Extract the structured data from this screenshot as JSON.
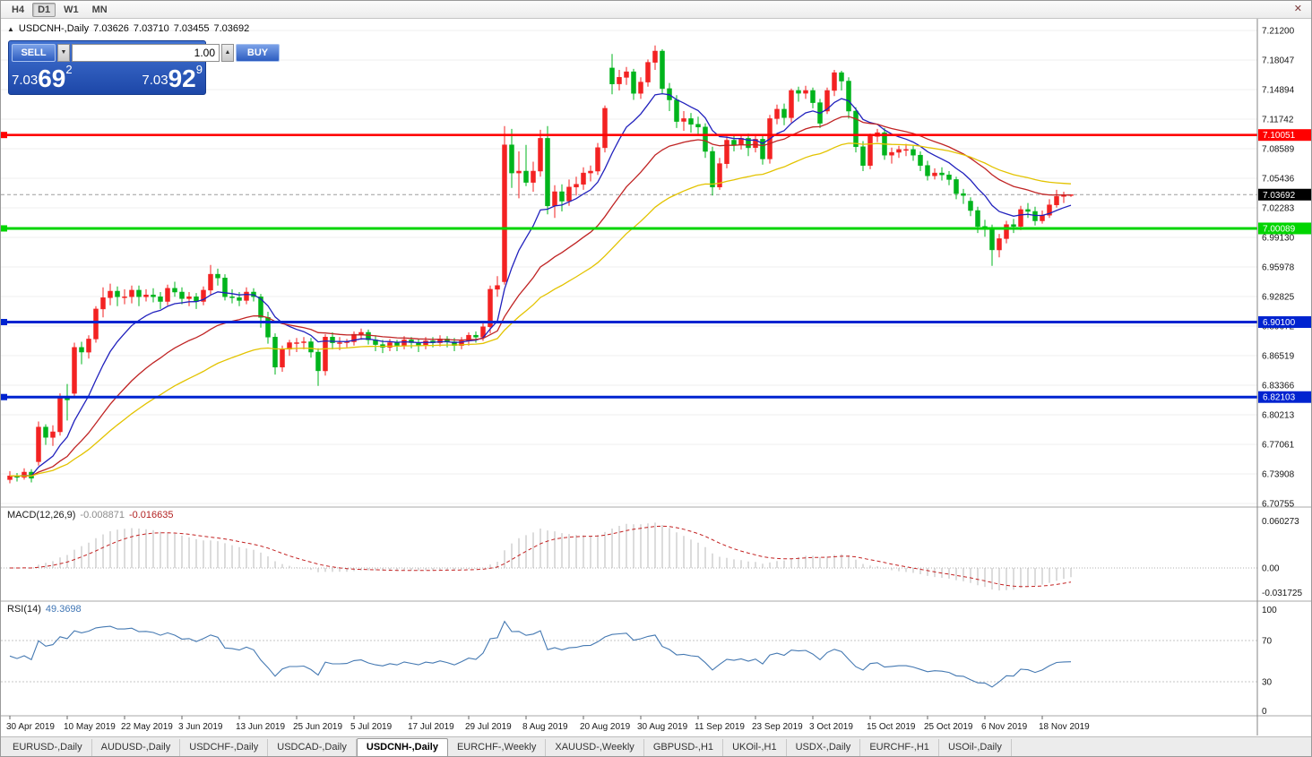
{
  "window": {
    "close_label": "✕"
  },
  "toolbar": {
    "timeframes": [
      "H4",
      "D1",
      "W1",
      "MN"
    ],
    "active_timeframe": "D1"
  },
  "info_line": {
    "collapse_icon": "▲",
    "symbol": "USDCNH-,Daily",
    "open": "7.03626",
    "high": "7.03710",
    "low": "7.03455",
    "close": "7.03692"
  },
  "trade_panel": {
    "sell_label": "SELL",
    "buy_label": "BUY",
    "volume": "1.00",
    "volume_down_icon": "▼",
    "volume_up_icon": "▲",
    "sell_price": {
      "prefix": "7.03",
      "big": "69",
      "sup": "2"
    },
    "buy_price": {
      "prefix": "7.03",
      "big": "92",
      "sup": "9"
    }
  },
  "indicator_labels": {
    "macd_name": "MACD(12,26,9)",
    "macd_value_main": "-0.008871",
    "macd_value_signal": "-0.016635",
    "rsi_name": "RSI(14)",
    "rsi_value": "49.3698"
  },
  "tabs": [
    {
      "label": "EURUSD-,Daily",
      "active": false
    },
    {
      "label": "AUDUSD-,Daily",
      "active": false
    },
    {
      "label": "USDCHF-,Daily",
      "active": false
    },
    {
      "label": "USDCAD-,Daily",
      "active": false
    },
    {
      "label": "USDCNH-,Daily",
      "active": true
    },
    {
      "label": "EURCHF-,Weekly",
      "active": false
    },
    {
      "label": "XAUUSD-,Weekly",
      "active": false
    },
    {
      "label": "GBPUSD-,H1",
      "active": false
    },
    {
      "label": "UKOil-,H1",
      "active": false
    },
    {
      "label": "USDX-,Daily",
      "active": false
    },
    {
      "label": "EURCHF-,H1",
      "active": false
    },
    {
      "label": "USOil-,Daily",
      "active": false
    }
  ],
  "chart_data": {
    "type": "candlestick",
    "symbol": "USDCNH-",
    "timeframe": "Daily",
    "ohlc_current": {
      "open": 7.03626,
      "high": 7.0371,
      "low": 7.03455,
      "close": 7.03692
    },
    "bid": 7.03692,
    "ylim": [
      6.70755,
      7.212
    ],
    "y_tick_labels": [
      "7.21200",
      "7.18047",
      "7.14894",
      "7.11742",
      "7.08589",
      "7.05436",
      "7.02283",
      "6.99130",
      "6.95978",
      "6.92825",
      "6.89672",
      "6.86519",
      "6.83366",
      "6.80213",
      "6.77061",
      "6.73908",
      "6.70755"
    ],
    "x_ticks": [
      {
        "index": 0,
        "label": "30 Apr 2019"
      },
      {
        "index": 8,
        "label": "10 May 2019"
      },
      {
        "index": 16,
        "label": "22 May 2019"
      },
      {
        "index": 24,
        "label": "3 Jun 2019"
      },
      {
        "index": 32,
        "label": "13 Jun 2019"
      },
      {
        "index": 40,
        "label": "25 Jun 2019"
      },
      {
        "index": 48,
        "label": "5 Jul 2019"
      },
      {
        "index": 56,
        "label": "17 Jul 2019"
      },
      {
        "index": 64,
        "label": "29 Jul 2019"
      },
      {
        "index": 72,
        "label": "8 Aug 2019"
      },
      {
        "index": 80,
        "label": "20 Aug 2019"
      },
      {
        "index": 88,
        "label": "30 Aug 2019"
      },
      {
        "index": 96,
        "label": "11 Sep 2019"
      },
      {
        "index": 104,
        "label": "23 Sep 2019"
      },
      {
        "index": 112,
        "label": "3 Oct 2019"
      },
      {
        "index": 120,
        "label": "15 Oct 2019"
      },
      {
        "index": 128,
        "label": "25 Oct 2019"
      },
      {
        "index": 136,
        "label": "6 Nov 2019"
      },
      {
        "index": 144,
        "label": "18 Nov 2019"
      }
    ],
    "colors": {
      "up": "#f32222",
      "down": "#00b41c"
    },
    "ma": [
      {
        "type": "ema",
        "period": 10,
        "color": "#2121bd"
      },
      {
        "type": "ema",
        "period": 25,
        "color": "#c02424"
      },
      {
        "type": "ema",
        "period": 45,
        "color": "#e3c300"
      }
    ],
    "hlines": [
      {
        "price": 7.10051,
        "label": "7.10051",
        "color": "#ff0000",
        "width": 2.6
      },
      {
        "price": 7.00089,
        "label": "7.00089",
        "color": "#00d500",
        "width": 3
      },
      {
        "price": 6.901,
        "label": "6.90100",
        "color": "#0023d0",
        "width": 3
      },
      {
        "price": 6.82103,
        "label": "6.82103",
        "color": "#0023d0",
        "width": 3
      }
    ],
    "current_price_tag": {
      "label": "7.03692",
      "color": "#000000"
    },
    "indicators": {
      "macd": {
        "fast": 12,
        "slow": 26,
        "signal": 9,
        "values_shown": [
          -0.008871,
          -0.016635
        ],
        "axis_labels": [
          "0.060273",
          "0.00",
          "-0.031725"
        ]
      },
      "rsi": {
        "period": 14,
        "value_shown": 49.3698,
        "axis_labels": [
          "100",
          "70",
          "30",
          "0"
        ],
        "levels": [
          70,
          30
        ]
      }
    },
    "candles": [
      [
        6.733,
        6.742,
        6.729,
        6.737
      ],
      [
        6.737,
        6.74,
        6.731,
        6.7355
      ],
      [
        6.7355,
        6.745,
        6.733,
        6.741
      ],
      [
        6.741,
        6.744,
        6.73,
        6.7345
      ],
      [
        6.752,
        6.795,
        6.748,
        6.789
      ],
      [
        6.789,
        6.792,
        6.77,
        6.778
      ],
      [
        6.778,
        6.791,
        6.769,
        6.784
      ],
      [
        6.784,
        6.825,
        6.78,
        6.822
      ],
      [
        6.822,
        6.835,
        6.796,
        6.818
      ],
      [
        6.825,
        6.879,
        6.82,
        6.874
      ],
      [
        6.874,
        6.88,
        6.856,
        6.869
      ],
      [
        6.869,
        6.887,
        6.862,
        6.883
      ],
      [
        6.883,
        6.918,
        6.879,
        6.915
      ],
      [
        6.915,
        6.938,
        6.906,
        6.927
      ],
      [
        6.927,
        6.942,
        6.919,
        6.934
      ],
      [
        6.934,
        6.939,
        6.918,
        6.928
      ],
      [
        6.928,
        6.936,
        6.92,
        6.928
      ],
      [
        6.928,
        6.94,
        6.921,
        6.935
      ],
      [
        6.935,
        6.94,
        6.918,
        6.928
      ],
      [
        6.928,
        6.936,
        6.923,
        6.93
      ],
      [
        6.93,
        6.937,
        6.922,
        6.928
      ],
      [
        6.928,
        6.933,
        6.915,
        6.923
      ],
      [
        6.923,
        6.941,
        6.919,
        6.937
      ],
      [
        6.937,
        6.944,
        6.928,
        6.933
      ],
      [
        6.933,
        6.938,
        6.92,
        6.926
      ],
      [
        6.926,
        6.933,
        6.918,
        6.928
      ],
      [
        6.928,
        6.932,
        6.915,
        6.923
      ],
      [
        6.923,
        6.939,
        6.919,
        6.935
      ],
      [
        6.935,
        6.962,
        6.93,
        6.952
      ],
      [
        6.952,
        6.958,
        6.94,
        6.948
      ],
      [
        6.948,
        6.952,
        6.924,
        6.928
      ],
      [
        6.928,
        6.936,
        6.921,
        6.927
      ],
      [
        6.927,
        6.933,
        6.918,
        6.924
      ],
      [
        6.924,
        6.938,
        6.92,
        6.933
      ],
      [
        6.933,
        6.937,
        6.923,
        6.928
      ],
      [
        6.928,
        6.931,
        6.895,
        6.906
      ],
      [
        6.906,
        6.912,
        6.878,
        6.885
      ],
      [
        6.885,
        6.889,
        6.845,
        6.853
      ],
      [
        6.853,
        6.876,
        6.848,
        6.872
      ],
      [
        6.872,
        6.882,
        6.865,
        6.879
      ],
      [
        6.879,
        6.884,
        6.869,
        6.879
      ],
      [
        6.879,
        6.885,
        6.872,
        6.88
      ],
      [
        6.88,
        6.884,
        6.863,
        6.869
      ],
      [
        6.869,
        6.873,
        6.833,
        6.849
      ],
      [
        6.849,
        6.888,
        6.844,
        6.885
      ],
      [
        6.885,
        6.89,
        6.872,
        6.879
      ],
      [
        6.879,
        6.885,
        6.871,
        6.879
      ],
      [
        6.879,
        6.883,
        6.874,
        6.88
      ],
      [
        6.88,
        6.891,
        6.876,
        6.888
      ],
      [
        6.888,
        6.894,
        6.882,
        6.89
      ],
      [
        6.89,
        6.893,
        6.877,
        6.882
      ],
      [
        6.882,
        6.887,
        6.87,
        6.877
      ],
      [
        6.877,
        6.882,
        6.868,
        6.874
      ],
      [
        6.874,
        6.883,
        6.87,
        6.879
      ],
      [
        6.879,
        6.882,
        6.87,
        6.876
      ],
      [
        6.876,
        6.886,
        6.872,
        6.882
      ],
      [
        6.882,
        6.885,
        6.873,
        6.879
      ],
      [
        6.879,
        6.883,
        6.869,
        6.876
      ],
      [
        6.876,
        6.885,
        6.872,
        6.881
      ],
      [
        6.881,
        6.885,
        6.874,
        6.879
      ],
      [
        6.879,
        6.887,
        6.875,
        6.883
      ],
      [
        6.883,
        6.886,
        6.874,
        6.88
      ],
      [
        6.88,
        6.884,
        6.87,
        6.876
      ],
      [
        6.876,
        6.885,
        6.872,
        6.881
      ],
      [
        6.881,
        6.89,
        6.876,
        6.887
      ],
      [
        6.887,
        6.891,
        6.879,
        6.885
      ],
      [
        6.885,
        6.9,
        6.881,
        6.896
      ],
      [
        6.896,
        6.94,
        6.889,
        6.936
      ],
      [
        6.936,
        6.95,
        6.928,
        6.94
      ],
      [
        6.944,
        7.11,
        6.941,
        7.09
      ],
      [
        7.09,
        7.107,
        7.044,
        7.06
      ],
      [
        7.06,
        7.083,
        7.033,
        7.062
      ],
      [
        7.062,
        7.09,
        7.046,
        7.05
      ],
      [
        7.05,
        7.072,
        7.04,
        7.062
      ],
      [
        7.062,
        7.106,
        7.056,
        7.097
      ],
      [
        7.097,
        7.11,
        7.016,
        7.025
      ],
      [
        7.025,
        7.047,
        7.012,
        7.04
      ],
      [
        7.04,
        7.048,
        7.019,
        7.03
      ],
      [
        7.03,
        7.053,
        7.025,
        7.045
      ],
      [
        7.045,
        7.056,
        7.036,
        7.048
      ],
      [
        7.048,
        7.066,
        7.042,
        7.06
      ],
      [
        7.06,
        7.068,
        7.051,
        7.062
      ],
      [
        7.062,
        7.092,
        7.058,
        7.087
      ],
      [
        7.087,
        7.132,
        7.082,
        7.129
      ],
      [
        7.172,
        7.187,
        7.144,
        7.155
      ],
      [
        7.155,
        7.17,
        7.148,
        7.162
      ],
      [
        7.162,
        7.173,
        7.154,
        7.168
      ],
      [
        7.168,
        7.171,
        7.138,
        7.145
      ],
      [
        7.145,
        7.162,
        7.139,
        7.157
      ],
      [
        7.157,
        7.181,
        7.152,
        7.178
      ],
      [
        7.178,
        7.196,
        7.17,
        7.19
      ],
      [
        7.19,
        7.192,
        7.144,
        7.15
      ],
      [
        7.15,
        7.156,
        7.126,
        7.138
      ],
      [
        7.138,
        7.143,
        7.108,
        7.115
      ],
      [
        7.115,
        7.126,
        7.105,
        7.118
      ],
      [
        7.118,
        7.124,
        7.103,
        7.112
      ],
      [
        7.112,
        7.12,
        7.101,
        7.109
      ],
      [
        7.109,
        7.113,
        7.076,
        7.083
      ],
      [
        7.083,
        7.088,
        7.036,
        7.045
      ],
      [
        7.045,
        7.076,
        7.042,
        7.07
      ],
      [
        7.07,
        7.099,
        7.065,
        7.095
      ],
      [
        7.095,
        7.101,
        7.083,
        7.09
      ],
      [
        7.09,
        7.101,
        7.085,
        7.097
      ],
      [
        7.097,
        7.102,
        7.078,
        7.087
      ],
      [
        7.087,
        7.101,
        7.082,
        7.096
      ],
      [
        7.096,
        7.1,
        7.069,
        7.075
      ],
      [
        7.075,
        7.122,
        7.07,
        7.118
      ],
      [
        7.118,
        7.133,
        7.112,
        7.128
      ],
      [
        7.128,
        7.134,
        7.111,
        7.119
      ],
      [
        7.119,
        7.15,
        7.114,
        7.148
      ],
      [
        7.148,
        7.152,
        7.136,
        7.145
      ],
      [
        7.145,
        7.153,
        7.139,
        7.148
      ],
      [
        7.148,
        7.151,
        7.129,
        7.135
      ],
      [
        7.135,
        7.139,
        7.108,
        7.113
      ],
      [
        7.126,
        7.151,
        7.123,
        7.148
      ],
      [
        7.148,
        7.17,
        7.142,
        7.167
      ],
      [
        7.167,
        7.169,
        7.148,
        7.158
      ],
      [
        7.158,
        7.162,
        7.118,
        7.126
      ],
      [
        7.126,
        7.13,
        7.082,
        7.088
      ],
      [
        7.088,
        7.094,
        7.062,
        7.068
      ],
      [
        7.068,
        7.102,
        7.064,
        7.099
      ],
      [
        7.099,
        7.107,
        7.093,
        7.103
      ],
      [
        7.103,
        7.108,
        7.074,
        7.079
      ],
      [
        7.079,
        7.087,
        7.07,
        7.082
      ],
      [
        7.082,
        7.089,
        7.076,
        7.085
      ],
      [
        7.085,
        7.091,
        7.078,
        7.085
      ],
      [
        7.085,
        7.089,
        7.073,
        7.079
      ],
      [
        7.079,
        7.083,
        7.062,
        7.068
      ],
      [
        7.068,
        7.073,
        7.052,
        7.057
      ],
      [
        7.057,
        7.065,
        7.053,
        7.06
      ],
      [
        7.06,
        7.066,
        7.052,
        7.058
      ],
      [
        7.058,
        7.062,
        7.047,
        7.053
      ],
      [
        7.053,
        7.056,
        7.032,
        7.038
      ],
      [
        7.038,
        7.043,
        7.027,
        7.036
      ],
      [
        7.03,
        7.034,
        7.014,
        7.02
      ],
      [
        7.02,
        7.024,
        6.996,
        7.003
      ],
      [
        7.003,
        7.01,
        6.992,
        7.002
      ],
      [
        7.002,
        7.005,
        6.961,
        6.978
      ],
      [
        6.978,
        6.995,
        6.97,
        6.99
      ],
      [
        6.99,
        7.009,
        6.985,
        7.005
      ],
      [
        7.005,
        7.011,
        6.996,
        7.003
      ],
      [
        7.003,
        7.025,
        6.999,
        7.021
      ],
      [
        7.021,
        7.028,
        7.012,
        7.019
      ],
      [
        7.019,
        7.024,
        7.004,
        7.009
      ],
      [
        7.009,
        7.02,
        7.006,
        7.015
      ],
      [
        7.015,
        7.032,
        7.012,
        7.026
      ],
      [
        7.026,
        7.042,
        7.023,
        7.035
      ],
      [
        7.035,
        7.04,
        7.028,
        7.0363
      ],
      [
        7.03626,
        7.0371,
        7.03455,
        7.03692
      ]
    ]
  }
}
